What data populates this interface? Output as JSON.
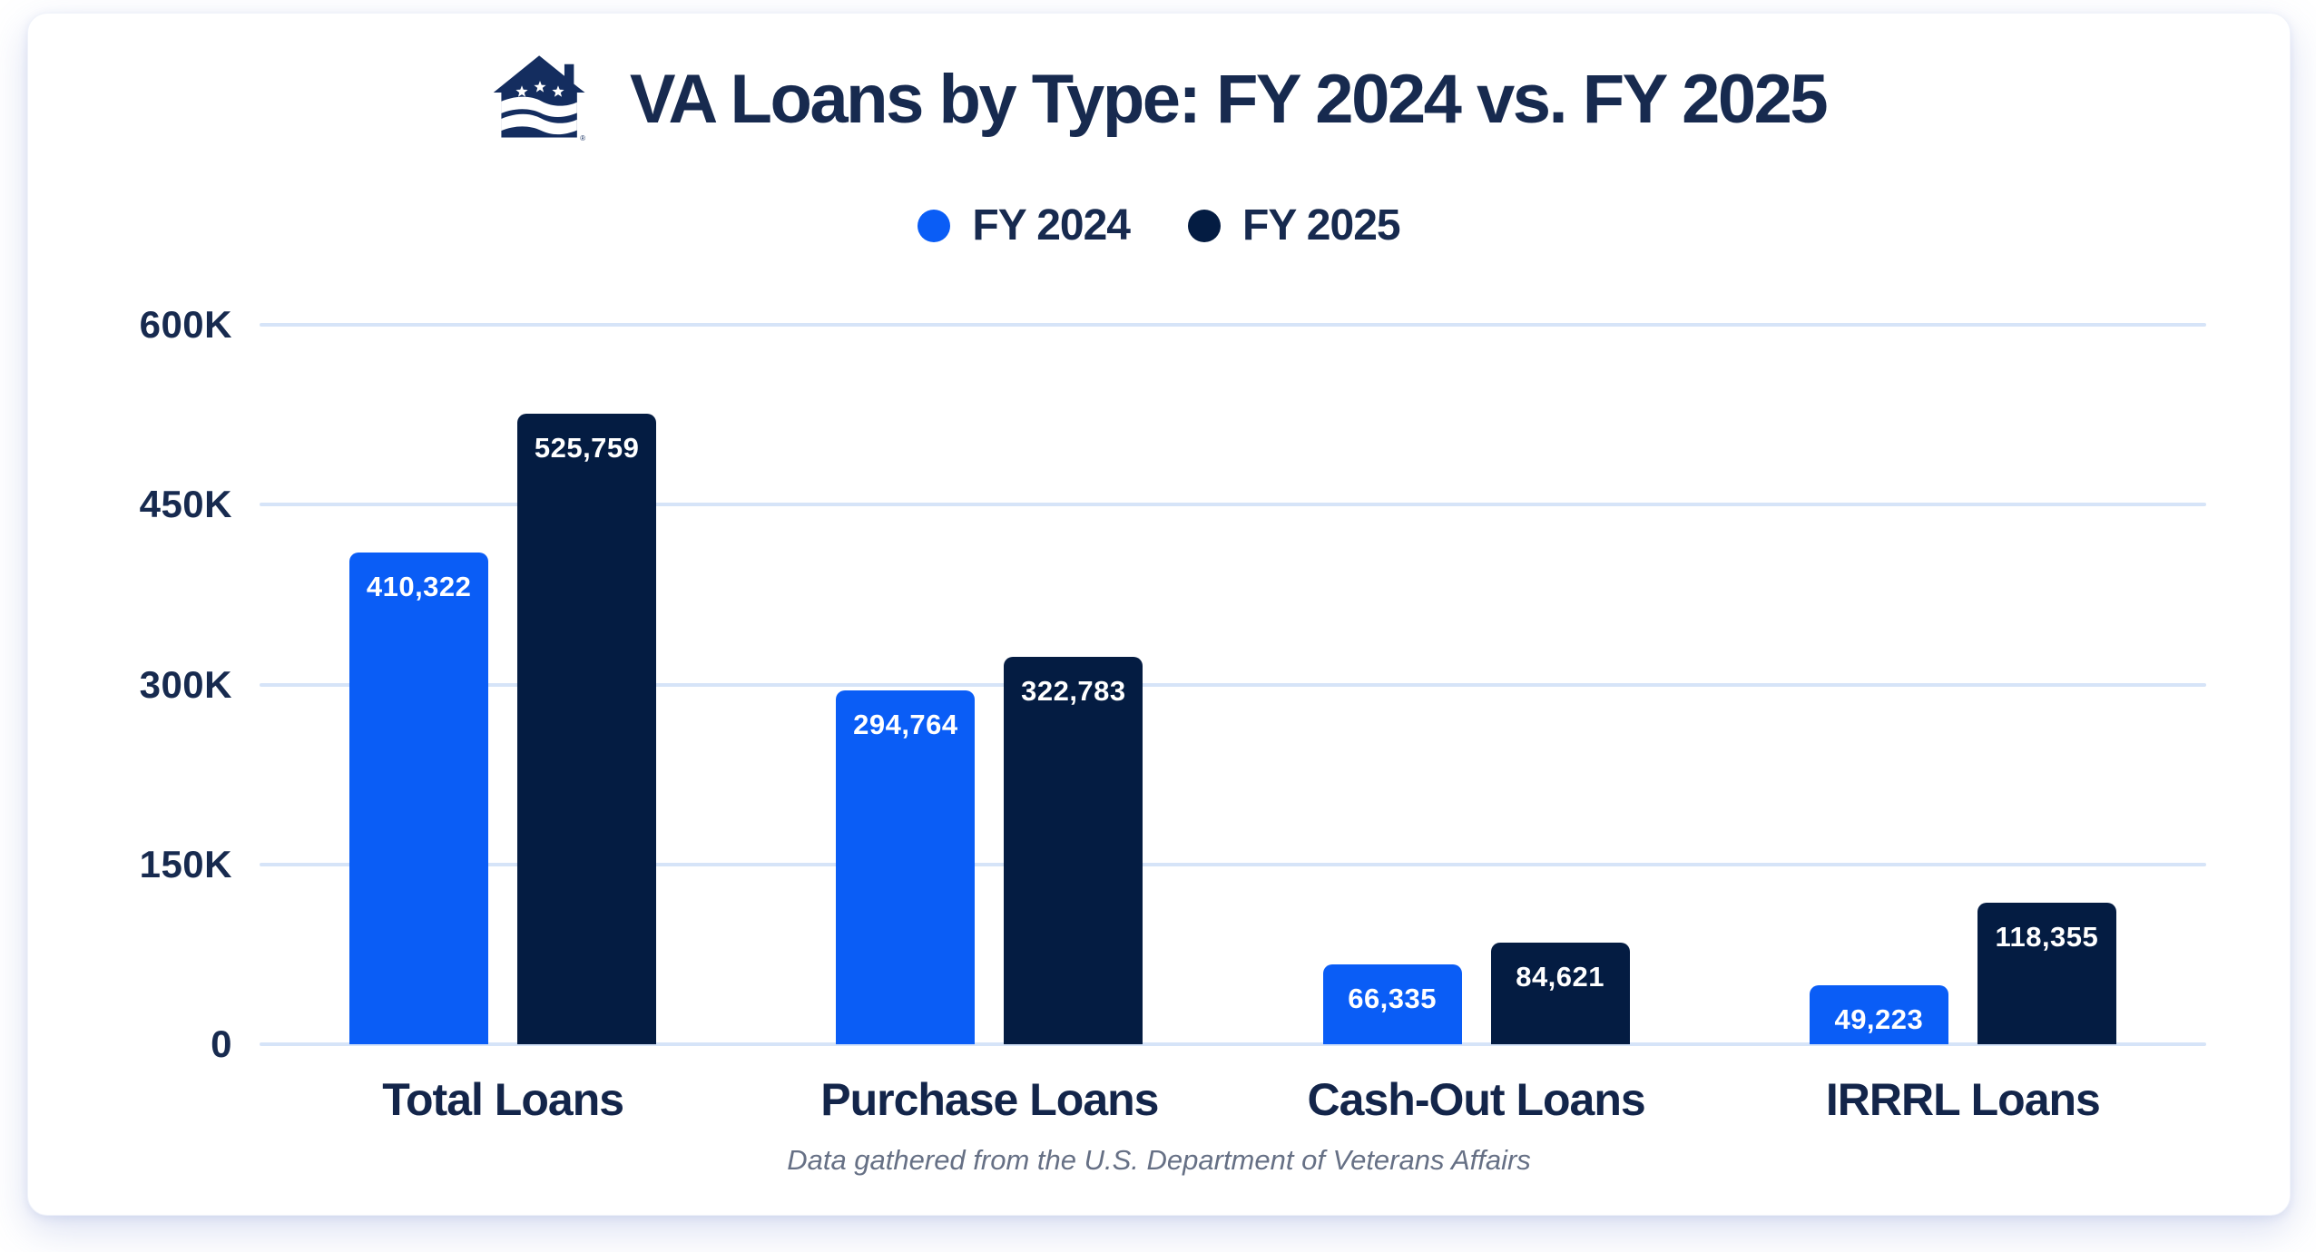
{
  "header": {
    "title": "VA Loans by Type: FY 2024 vs. FY 2025",
    "logo_name": "veterans-united-house-logo",
    "registered_mark": "®"
  },
  "legend": [
    {
      "label": "FY 2024",
      "color": "#0a5df6"
    },
    {
      "label": "FY 2025",
      "color": "#041c42"
    }
  ],
  "footer": {
    "source_note": "Data gathered from the U.S. Department of Veterans Affairs"
  },
  "colors": {
    "fy2024_blue": "#0a5df6",
    "fy2025_navy": "#041c42",
    "text_navy": "#172a4f",
    "gridline_blue": "#d6e4f8",
    "footer_gray": "#667085",
    "logo_navy": "#142d5f",
    "card_background": "#ffffff"
  },
  "chart_data": {
    "type": "bar",
    "title": "VA Loans by Type: FY 2024 vs. FY 2025",
    "categories": [
      "Total Loans",
      "Purchase Loans",
      "Cash-Out Loans",
      "IRRRL Loans"
    ],
    "series": [
      {
        "name": "FY 2024",
        "color": "#0a5df6",
        "values": [
          410322,
          294764,
          66335,
          49223
        ],
        "labels": [
          "410,322",
          "294,764",
          "66,335",
          "49,223"
        ]
      },
      {
        "name": "FY 2025",
        "color": "#041c42",
        "values": [
          525759,
          322783,
          84621,
          118355
        ],
        "labels": [
          "525,759",
          "322,783",
          "84,621",
          "118,355"
        ]
      }
    ],
    "xlabel": "",
    "ylabel": "",
    "y_axis": {
      "max": 600000,
      "min": 0,
      "ticks": [
        "600K",
        "450K",
        "300K",
        "150K",
        "0"
      ],
      "tick_values": [
        600000,
        450000,
        300000,
        150000,
        0
      ],
      "grid": true
    },
    "legend_position": "top"
  }
}
